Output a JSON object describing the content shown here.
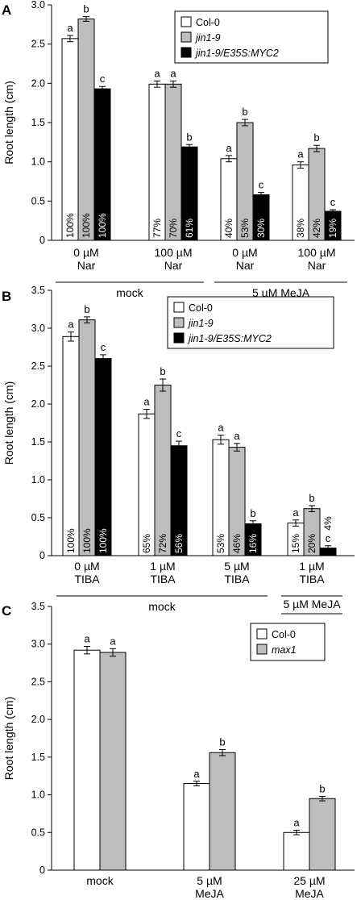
{
  "colors": {
    "white_bar": "#ffffff",
    "gray_bar": "#bdbdbd",
    "black_bar": "#000000"
  },
  "chart_data": [
    {
      "panel": "A",
      "type": "bar",
      "ylabel": "Root length (cm)",
      "ylim": [
        0,
        3.0
      ],
      "yticks": [
        "0",
        "0.5",
        "1.0",
        "1.5",
        "2.0",
        "2.5",
        "3.0"
      ],
      "grid": false,
      "legend_position": "top-right",
      "categories": [
        [
          "0 µM",
          "Nar"
        ],
        [
          "100 µM",
          "Nar"
        ],
        [
          "0 µM",
          "Nar"
        ],
        [
          "100 µM",
          "Nar"
        ]
      ],
      "groups": [
        {
          "label": "mock",
          "from": 0,
          "to": 1
        },
        {
          "label": "5 µM MeJA",
          "from": 2,
          "to": 3
        }
      ],
      "series": [
        {
          "name": "Col-0",
          "italic": false,
          "color": "white",
          "values": [
            2.57,
            1.99,
            1.04,
            0.96
          ],
          "err": [
            0.04,
            0.04,
            0.04,
            0.04
          ],
          "letters": [
            "a",
            "a",
            "a",
            "a"
          ],
          "pct": [
            "100%",
            "77%",
            "40%",
            "38%"
          ]
        },
        {
          "name": "jin1-9",
          "italic": true,
          "color": "gray",
          "values": [
            2.82,
            1.99,
            1.5,
            1.17
          ],
          "err": [
            0.03,
            0.04,
            0.04,
            0.04
          ],
          "letters": [
            "b",
            "a",
            "b",
            "b"
          ],
          "pct": [
            "100%",
            "70%",
            "53%",
            "42%"
          ]
        },
        {
          "name": "jin1-9/E35S:MYC2",
          "italic": true,
          "color": "black",
          "values": [
            1.93,
            1.19,
            0.58,
            0.37
          ],
          "err": [
            0.03,
            0.03,
            0.03,
            0.02
          ],
          "letters": [
            "c",
            "b",
            "c",
            "c"
          ],
          "pct": [
            "100%",
            "61%",
            "30%",
            "19%"
          ]
        }
      ]
    },
    {
      "panel": "B",
      "type": "bar",
      "ylabel": "Root length (cm)",
      "ylim": [
        0,
        3.5
      ],
      "yticks": [
        "0",
        "0.5",
        "1.0",
        "1.5",
        "2.0",
        "2.5",
        "3.0",
        "3.5"
      ],
      "grid": false,
      "legend_position": "top-right",
      "categories": [
        [
          "0 µM",
          "TIBA"
        ],
        [
          "1 µM",
          "TIBA"
        ],
        [
          "5 µM",
          "TIBA"
        ],
        [
          "1 µM",
          "TIBA"
        ]
      ],
      "groups": [
        {
          "label": "mock",
          "from": 0,
          "to": 2
        },
        {
          "label": "5 µM MeJA",
          "from": 3,
          "to": 3
        }
      ],
      "series": [
        {
          "name": "Col-0",
          "italic": false,
          "color": "white",
          "values": [
            2.89,
            1.87,
            1.53,
            0.43
          ],
          "err": [
            0.06,
            0.06,
            0.06,
            0.04
          ],
          "letters": [
            "a",
            "a",
            "a",
            "a"
          ],
          "pct": [
            "100%",
            "65%",
            "53%",
            "15%"
          ]
        },
        {
          "name": "jin1-9",
          "italic": true,
          "color": "gray",
          "values": [
            3.11,
            2.25,
            1.43,
            0.62
          ],
          "err": [
            0.04,
            0.08,
            0.05,
            0.04
          ],
          "letters": [
            "b",
            "b",
            "a",
            "b"
          ],
          "pct": [
            "100%",
            "72%",
            "46%",
            "20%"
          ]
        },
        {
          "name": "jin1-9/E35S:MYC2",
          "italic": true,
          "color": "black",
          "values": [
            2.6,
            1.45,
            0.42,
            0.1
          ],
          "err": [
            0.05,
            0.06,
            0.04,
            0.03
          ],
          "letters": [
            "c",
            "c",
            "b",
            "c"
          ],
          "pct": [
            "100%",
            "56%",
            "16%",
            "4%"
          ]
        }
      ]
    },
    {
      "panel": "C",
      "type": "bar",
      "ylabel": "Root length (cm)",
      "ylim": [
        0,
        3.5
      ],
      "yticks": [
        "0",
        "0.5",
        "1.0",
        "1.5",
        "2.0",
        "2.5",
        "3.0",
        "3.5"
      ],
      "grid": false,
      "legend_position": "top-right",
      "categories": [
        [
          "mock"
        ],
        [
          "5 µM",
          "MeJA"
        ],
        [
          "25 µM",
          "MeJA"
        ]
      ],
      "groups": [],
      "series": [
        {
          "name": "Col-0",
          "italic": false,
          "color": "white",
          "values": [
            2.92,
            1.15,
            0.5
          ],
          "err": [
            0.05,
            0.03,
            0.03
          ],
          "letters": [
            "a",
            "a",
            "a"
          ],
          "pct": []
        },
        {
          "name": "max1",
          "italic": true,
          "color": "gray",
          "values": [
            2.89,
            1.56,
            0.95
          ],
          "err": [
            0.05,
            0.04,
            0.03
          ],
          "letters": [
            "a",
            "b",
            "b"
          ],
          "pct": []
        }
      ]
    }
  ]
}
